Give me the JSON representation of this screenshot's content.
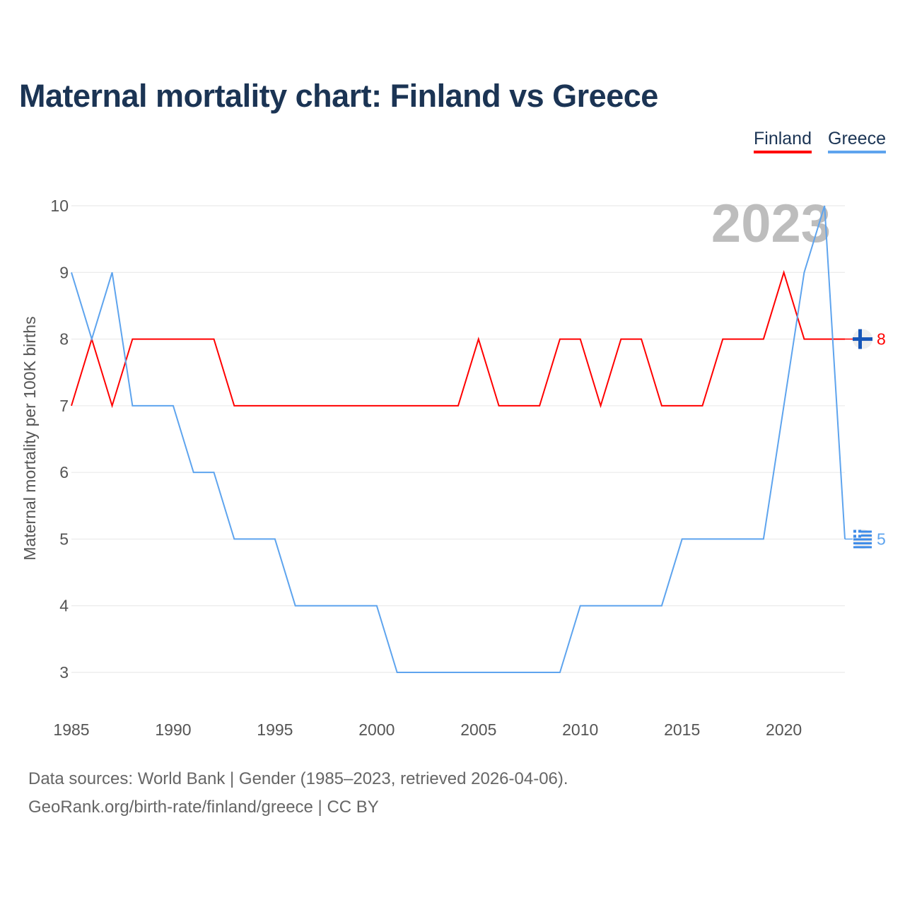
{
  "chart_data": {
    "type": "line",
    "title": "Maternal mortality chart: Finland vs Greece",
    "xlabel": "",
    "ylabel": "Maternal mortality per 100K births",
    "xlim": [
      1985,
      2023
    ],
    "ylim": [
      2.4,
      10
    ],
    "xticks": [
      1985,
      1990,
      1995,
      2000,
      2005,
      2010,
      2015,
      2020
    ],
    "yticks": [
      3,
      4,
      5,
      6,
      7,
      8,
      9,
      10
    ],
    "grid": true,
    "legend_placement": "top-right",
    "year_watermark": "2023",
    "x": [
      1985,
      1986,
      1987,
      1988,
      1989,
      1990,
      1991,
      1992,
      1993,
      1994,
      1995,
      1996,
      1997,
      1998,
      1999,
      2000,
      2001,
      2002,
      2003,
      2004,
      2005,
      2006,
      2007,
      2008,
      2009,
      2010,
      2011,
      2012,
      2013,
      2014,
      2015,
      2016,
      2017,
      2018,
      2019,
      2020,
      2021,
      2022,
      2023
    ],
    "series": [
      {
        "name": "Finland",
        "color": "#ff0000",
        "end_label": "8",
        "values": [
          7,
          8,
          7,
          8,
          8,
          8,
          8,
          8,
          7,
          7,
          7,
          7,
          7,
          7,
          7,
          7,
          7,
          7,
          7,
          7,
          8,
          7,
          7,
          7,
          8,
          8,
          7,
          8,
          8,
          7,
          7,
          7,
          8,
          8,
          8,
          9,
          8,
          8,
          8
        ]
      },
      {
        "name": "Greece",
        "color": "#5ea4ee",
        "end_label": "5",
        "values": [
          9,
          8,
          9,
          7,
          7,
          7,
          6,
          6,
          5,
          5,
          5,
          4,
          4,
          4,
          4,
          4,
          3,
          3,
          3,
          3,
          3,
          3,
          3,
          3,
          3,
          4,
          4,
          4,
          4,
          4,
          5,
          5,
          5,
          5,
          5,
          7,
          9,
          10,
          5
        ]
      }
    ]
  },
  "footer": {
    "line1": "Data sources: World Bank | Gender (1985–2023, retrieved 2026-04-06).",
    "line2": "GeoRank.org/birth-rate/finland/greece | CC BY"
  }
}
